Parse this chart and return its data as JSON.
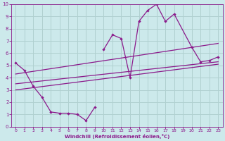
{
  "xlabel": "Windchill (Refroidissement éolien,°C)",
  "xlim": [
    -0.5,
    23.5
  ],
  "ylim": [
    0,
    10
  ],
  "xticks": [
    0,
    1,
    2,
    3,
    4,
    5,
    6,
    7,
    8,
    9,
    10,
    11,
    12,
    13,
    14,
    15,
    16,
    17,
    18,
    19,
    20,
    21,
    22,
    23
  ],
  "yticks": [
    0,
    1,
    2,
    3,
    4,
    5,
    6,
    7,
    8,
    9,
    10
  ],
  "bg_color": "#cce9eb",
  "line_color": "#8b1a8b",
  "grid_color": "#b0d0d0",
  "series1_x": [
    0,
    1,
    2,
    3,
    4,
    5,
    6,
    7,
    8,
    9
  ],
  "series1_y": [
    5.2,
    4.6,
    3.3,
    2.4,
    1.2,
    1.1,
    1.1,
    1.0,
    0.5,
    1.6
  ],
  "series2_x": [
    10,
    11,
    12,
    13,
    14,
    15,
    16,
    17,
    18,
    20,
    21,
    22,
    23
  ],
  "series2_y": [
    6.3,
    7.5,
    7.2,
    4.0,
    8.6,
    9.5,
    10.0,
    8.6,
    9.2,
    6.5,
    5.3,
    5.4,
    5.7
  ],
  "line1_x": [
    0,
    23
  ],
  "line1_y": [
    3.5,
    5.3
  ],
  "line2_x": [
    0,
    23
  ],
  "line2_y": [
    4.3,
    6.8
  ],
  "line3_x": [
    0,
    23
  ],
  "line3_y": [
    3.0,
    5.1
  ]
}
